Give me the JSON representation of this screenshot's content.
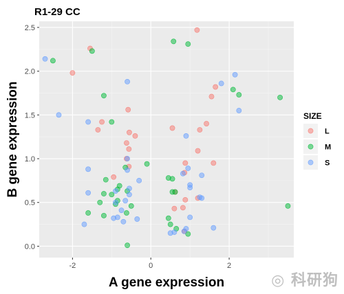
{
  "chart_data": {
    "type": "scatter",
    "title": "R1-29 CC",
    "xlabel": "A gene expression",
    "ylabel": "B gene expression",
    "xlim": [
      -2.85,
      3.65
    ],
    "ylim": [
      -0.13,
      2.57
    ],
    "xticks": [
      -2,
      0,
      2
    ],
    "yticks": [
      0.0,
      0.5,
      1.0,
      1.5,
      2.0,
      2.5
    ],
    "grid": true,
    "legend": {
      "title": "SIZE",
      "position": "right"
    },
    "series": [
      {
        "name": "L",
        "color": "#F8766D",
        "points": [
          [
            1.18,
            2.47
          ],
          [
            -1.55,
            2.26
          ],
          [
            -2.0,
            1.98
          ],
          [
            1.65,
            1.82
          ],
          [
            1.55,
            1.71
          ],
          [
            -0.58,
            1.56
          ],
          [
            -1.25,
            1.42
          ],
          [
            1.42,
            1.4
          ],
          [
            0.55,
            1.35
          ],
          [
            1.25,
            1.33
          ],
          [
            -1.35,
            1.33
          ],
          [
            -0.55,
            1.3
          ],
          [
            -0.4,
            1.26
          ],
          [
            -0.62,
            1.18
          ],
          [
            -0.56,
            1.11
          ],
          [
            1.2,
            1.09
          ],
          [
            -0.62,
            1.0
          ],
          [
            0.88,
            0.95
          ],
          [
            -0.56,
            0.91
          ],
          [
            1.6,
            0.95
          ],
          [
            -0.95,
            0.79
          ],
          [
            0.86,
            0.84
          ],
          [
            0.62,
            0.62
          ],
          [
            1.2,
            0.55
          ],
          [
            0.88,
            0.53
          ],
          [
            0.6,
            0.43
          ],
          [
            0.82,
            0.44
          ],
          [
            0.86,
            0.17
          ]
        ]
      },
      {
        "name": "M",
        "color": "#00BA38",
        "points": [
          [
            -2.5,
            2.12
          ],
          [
            -1.5,
            2.23
          ],
          [
            0.58,
            2.34
          ],
          [
            0.95,
            2.31
          ],
          [
            2.1,
            1.79
          ],
          [
            2.25,
            1.73
          ],
          [
            3.3,
            1.7
          ],
          [
            -1.2,
            1.72
          ],
          [
            -1.0,
            1.42
          ],
          [
            -0.1,
            0.94
          ],
          [
            -0.65,
            0.9
          ],
          [
            0.45,
            0.78
          ],
          [
            0.55,
            0.77
          ],
          [
            -1.15,
            0.76
          ],
          [
            -0.8,
            0.69
          ],
          [
            -0.85,
            0.65
          ],
          [
            -0.6,
            0.63
          ],
          [
            -1.0,
            0.59
          ],
          [
            0.55,
            0.62
          ],
          [
            0.62,
            0.62
          ],
          [
            -1.2,
            0.6
          ],
          [
            -0.85,
            0.52
          ],
          [
            -0.9,
            0.48
          ],
          [
            -1.3,
            0.5
          ],
          [
            -0.5,
            0.46
          ],
          [
            -1.6,
            0.38
          ],
          [
            -1.2,
            0.35
          ],
          [
            -0.62,
            0.38
          ],
          [
            0.45,
            0.32
          ],
          [
            0.5,
            0.25
          ],
          [
            0.65,
            0.2
          ],
          [
            0.95,
            0.14
          ],
          [
            3.5,
            0.46
          ],
          [
            -0.6,
            0.01
          ]
        ]
      },
      {
        "name": "S",
        "color": "#619CFF",
        "points": [
          [
            -2.7,
            2.14
          ],
          [
            2.15,
            1.96
          ],
          [
            -0.6,
            1.88
          ],
          [
            1.8,
            1.86
          ],
          [
            -2.35,
            1.5
          ],
          [
            -1.6,
            1.42
          ],
          [
            2.25,
            1.55
          ],
          [
            0.9,
            1.26
          ],
          [
            -0.6,
            1.0
          ],
          [
            -1.6,
            0.88
          ],
          [
            -0.6,
            0.87
          ],
          [
            0.82,
            0.83
          ],
          [
            0.95,
            0.89
          ],
          [
            -0.3,
            0.75
          ],
          [
            1.3,
            0.81
          ],
          [
            1.0,
            0.7
          ],
          [
            -0.55,
            0.66
          ],
          [
            -0.9,
            0.63
          ],
          [
            -1.6,
            0.61
          ],
          [
            1.0,
            0.67
          ],
          [
            1.25,
            0.56
          ],
          [
            1.3,
            0.55
          ],
          [
            -0.55,
            0.59
          ],
          [
            -0.65,
            0.52
          ],
          [
            -0.9,
            0.5
          ],
          [
            -0.75,
            0.41
          ],
          [
            -0.85,
            0.33
          ],
          [
            1.0,
            0.33
          ],
          [
            -0.7,
            0.28
          ],
          [
            -0.35,
            0.31
          ],
          [
            -1.7,
            0.25
          ],
          [
            1.6,
            0.21
          ],
          [
            0.9,
            0.2
          ],
          [
            0.6,
            0.16
          ],
          [
            0.85,
            0.17
          ],
          [
            -0.95,
            0.32
          ],
          [
            0.5,
            0.15
          ]
        ]
      }
    ]
  }
}
